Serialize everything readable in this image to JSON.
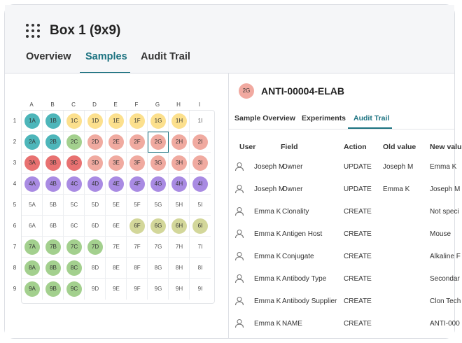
{
  "header": {
    "title": "Box 1 (9x9)"
  },
  "tabs": [
    {
      "label": "Overview"
    },
    {
      "label": "Samples"
    },
    {
      "label": "Audit Trail"
    }
  ],
  "box": {
    "columns": [
      "A",
      "B",
      "C",
      "D",
      "E",
      "F",
      "G",
      "H",
      "I"
    ],
    "rows": [
      "1",
      "2",
      "3",
      "4",
      "5",
      "6",
      "7",
      "8",
      "9"
    ],
    "colors": {
      "teal": "#4db6ba",
      "yellow": "#fce08d",
      "green": "#a3d08e",
      "salmon": "#f0aaa0",
      "red": "#e87171",
      "purple": "#a98be3",
      "olive": "#d3d79a"
    },
    "filled": {
      "1A": "teal",
      "1B": "teal",
      "1C": "yellow",
      "1D": "yellow",
      "1E": "yellow",
      "1F": "yellow",
      "1G": "yellow",
      "1H": "yellow",
      "2A": "teal",
      "2B": "teal",
      "2C": "green",
      "2D": "salmon",
      "2E": "salmon",
      "2F": "salmon",
      "2G": "salmon",
      "2H": "salmon",
      "2I": "salmon",
      "3A": "red",
      "3B": "red",
      "3C": "red",
      "3D": "salmon",
      "3E": "salmon",
      "3F": "salmon",
      "3G": "salmon",
      "3H": "salmon",
      "3I": "salmon",
      "4A": "purple",
      "4B": "purple",
      "4C": "purple",
      "4D": "purple",
      "4E": "purple",
      "4F": "purple",
      "4G": "purple",
      "4H": "purple",
      "4I": "purple",
      "6F": "olive",
      "6G": "olive",
      "6H": "olive",
      "6I": "olive",
      "7A": "green",
      "7B": "green",
      "7C": "green",
      "7D": "green",
      "8A": "green",
      "8B": "green",
      "8C": "green",
      "9A": "green",
      "9B": "green",
      "9C": "green"
    },
    "selected": "2G"
  },
  "sample": {
    "badge": "2G",
    "title": "ANTI-00004-ELAB"
  },
  "subtabs": [
    {
      "label": "Sample Overview"
    },
    {
      "label": "Experiments"
    },
    {
      "label": "Audit Trail"
    }
  ],
  "audit": {
    "headers": [
      "User",
      "Field",
      "Action",
      "Old value",
      "New valu"
    ],
    "rows": [
      {
        "user": "Joseph M",
        "field": "Owner",
        "action": "UPDATE",
        "old": "Joseph M",
        "new": "Emma K"
      },
      {
        "user": "Joseph M",
        "field": "Owner",
        "action": "UPDATE",
        "old": "Emma K",
        "new": "Joseph M"
      },
      {
        "user": "Emma K",
        "field": "Clonality",
        "action": "CREATE",
        "old": "",
        "new": "Not speci"
      },
      {
        "user": "Emma K",
        "field": "Antigen Host",
        "action": "CREATE",
        "old": "",
        "new": "Mouse"
      },
      {
        "user": "Emma K",
        "field": "Conjugate",
        "action": "CREATE",
        "old": "",
        "new": "Alkaline F"
      },
      {
        "user": "Emma K",
        "field": "Antibody Type",
        "action": "CREATE",
        "old": "",
        "new": "Secondar"
      },
      {
        "user": "Emma K",
        "field": "Antibody Supplier",
        "action": "CREATE",
        "old": "",
        "new": "Clon Tech"
      },
      {
        "user": "Emma K",
        "field": "NAME",
        "action": "CREATE",
        "old": "",
        "new": "ANTI-000"
      }
    ]
  }
}
